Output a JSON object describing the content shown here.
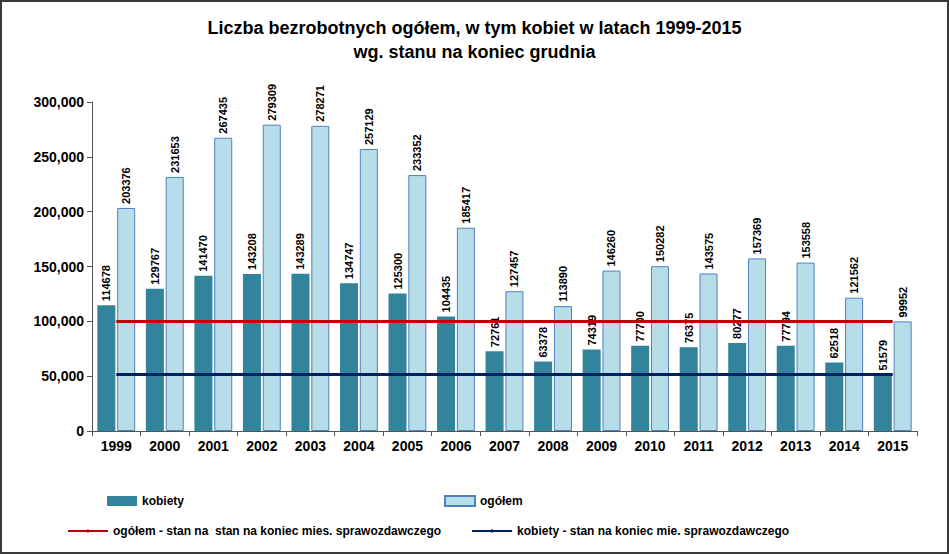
{
  "chart_data": {
    "type": "bar",
    "title": "Liczba bezrobotnych ogółem, w tym kobiet w latach 1999-2015",
    "subtitle": "wg. stanu na koniec grudnia",
    "categories": [
      "1999",
      "2000",
      "2001",
      "2002",
      "2003",
      "2004",
      "2005",
      "2006",
      "2007",
      "2008",
      "2009",
      "2010",
      "2011",
      "2012",
      "2013",
      "2014",
      "2015"
    ],
    "series": [
      {
        "name": "kobiety",
        "type": "bar",
        "color": "#31849b",
        "values": [
          114678,
          129767,
          141470,
          143208,
          143289,
          134747,
          125300,
          104435,
          72761,
          63378,
          74319,
          77700,
          76375,
          80277,
          77794,
          62518,
          51579
        ]
      },
      {
        "name": "ogółem",
        "type": "bar",
        "color": "#b7dee8",
        "values": [
          203376,
          231653,
          267435,
          279309,
          278271,
          257129,
          233352,
          185417,
          127457,
          113890,
          146260,
          150282,
          143575,
          157369,
          153558,
          121562,
          99952
        ]
      },
      {
        "name": "ogółem - stan na  stan na koniec mies. sprawozdawczego",
        "type": "line",
        "color": "#c00000",
        "line_style": "solid",
        "values": [
          99952,
          99952,
          99952,
          99952,
          99952,
          99952,
          99952,
          99952,
          99952,
          99952,
          99952,
          99952,
          99952,
          99952,
          99952,
          99952,
          99952
        ]
      },
      {
        "name": "kobiety - stan na koniec mie. sprawozdawczego",
        "type": "line",
        "color": "#002060",
        "line_style": "solid",
        "values": [
          51579,
          51579,
          51579,
          51579,
          51579,
          51579,
          51579,
          51579,
          51579,
          51579,
          51579,
          51579,
          51579,
          51579,
          51579,
          51579,
          51579
        ]
      }
    ],
    "ylim": [
      0,
      300000
    ],
    "yticks": [
      0,
      50000,
      100000,
      150000,
      200000,
      250000,
      300000
    ],
    "grid": false,
    "data_labels": true,
    "legend": "bottom"
  }
}
